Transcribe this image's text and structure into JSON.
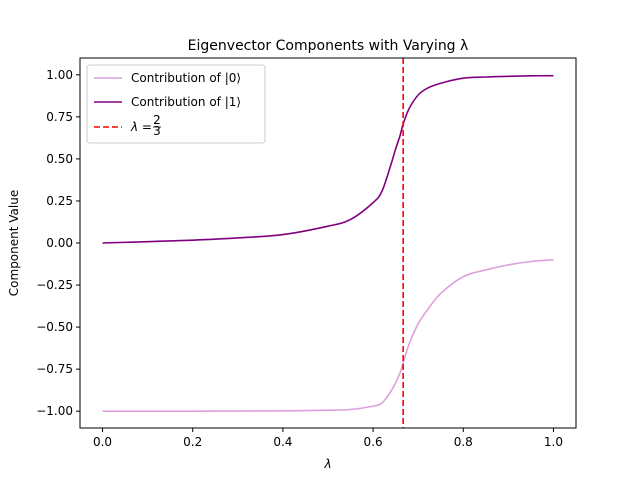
{
  "chart_data": {
    "type": "line",
    "title": "Eigenvector Components with Varying λ",
    "xlabel": "λ",
    "ylabel": "Component Value",
    "xlim": [
      -0.05,
      1.05
    ],
    "ylim": [
      -1.1,
      1.1
    ],
    "xticks": [
      "0.0",
      "0.2",
      "0.4",
      "0.6",
      "0.8",
      "1.0"
    ],
    "yticks": [
      "−1.00",
      "−0.75",
      "−0.50",
      "−0.25",
      "0.00",
      "0.25",
      "0.50",
      "0.75",
      "1.00"
    ],
    "grid": false,
    "legend_position": "upper-left",
    "x": [
      0.0,
      0.1,
      0.2,
      0.3,
      0.4,
      0.5,
      0.55,
      0.6,
      0.62,
      0.64,
      0.65,
      0.66,
      0.667,
      0.68,
      0.7,
      0.72,
      0.75,
      0.8,
      0.85,
      0.9,
      0.95,
      1.0
    ],
    "series": [
      {
        "name": "Contribution of |0⟩",
        "color": "#dda0dd",
        "values": [
          -1.0,
          -1.0,
          -1.0,
          -0.999,
          -0.998,
          -0.994,
          -0.99,
          -0.97,
          -0.95,
          -0.88,
          -0.83,
          -0.77,
          -0.71,
          -0.6,
          -0.48,
          -0.4,
          -0.3,
          -0.2,
          -0.16,
          -0.13,
          -0.11,
          -0.1
        ]
      },
      {
        "name": "Contribution of |1⟩",
        "color": "#800080",
        "values": [
          0.0,
          0.008,
          0.017,
          0.03,
          0.05,
          0.1,
          0.14,
          0.24,
          0.31,
          0.47,
          0.56,
          0.64,
          0.71,
          0.8,
          0.88,
          0.92,
          0.95,
          0.98,
          0.987,
          0.991,
          0.994,
          0.995
        ]
      }
    ],
    "vline": {
      "x": 0.6667,
      "label_prefix": "λ =",
      "label_num": "2",
      "label_den": "3",
      "color": "#ff0000"
    }
  }
}
